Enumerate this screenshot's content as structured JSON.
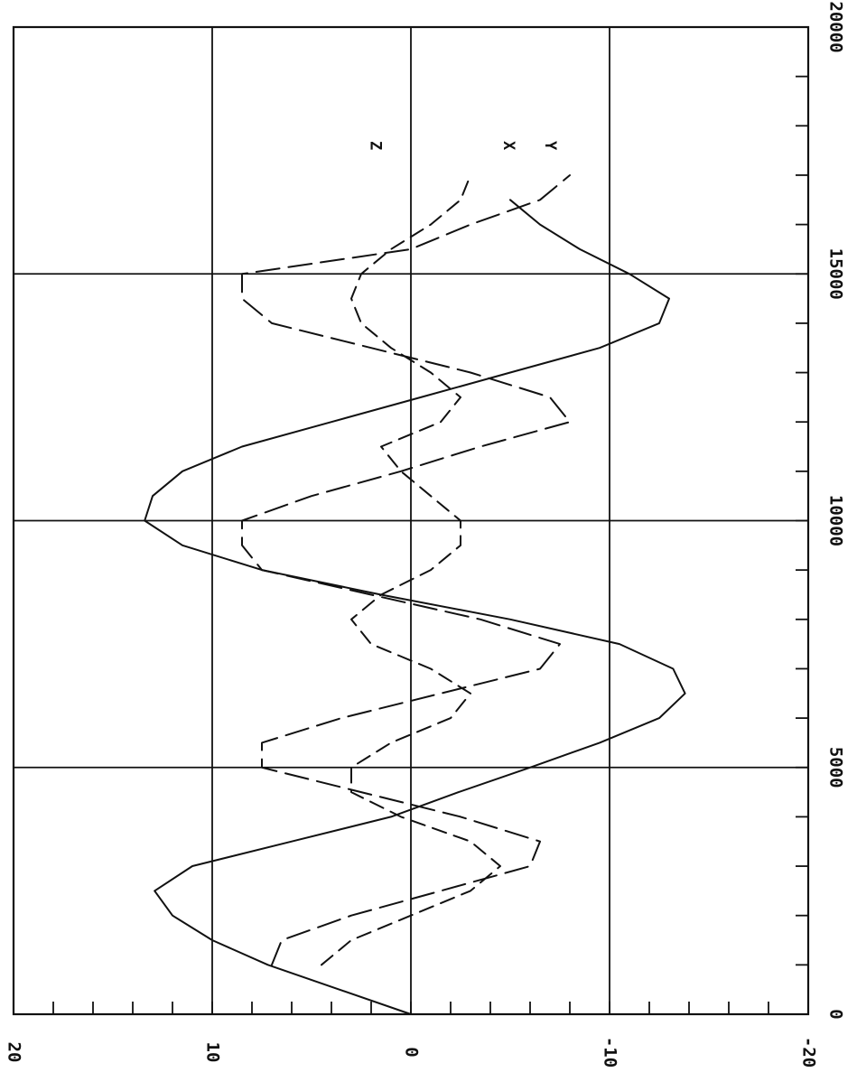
{
  "chart_data": {
    "type": "line",
    "title": "",
    "xlabel": "",
    "ylabel": "",
    "xlim": [
      0,
      20000
    ],
    "ylim": [
      -20,
      20
    ],
    "x_ticks": [
      0,
      5000,
      10000,
      15000,
      20000
    ],
    "x_tick_labels": [
      "0",
      "5000",
      "10000",
      "15000",
      "20000"
    ],
    "y_ticks": [
      20,
      10,
      0,
      -10,
      -20
    ],
    "y_tick_labels": [
      "20",
      "10",
      "0",
      "-10",
      "-20"
    ],
    "grid": true,
    "orientation": "rotated-90",
    "series": [
      {
        "name": "X",
        "style": "solid",
        "x": [
          0,
          500,
          1000,
          1500,
          2000,
          2500,
          3000,
          3500,
          4000,
          4500,
          5000,
          5500,
          6000,
          6500,
          7000,
          7500,
          8000,
          8500,
          9000,
          9500,
          10000,
          10500,
          11000,
          11500,
          12000,
          12500,
          13000,
          13500,
          14000,
          14500,
          15000,
          15500,
          16000,
          16500
        ],
        "y": [
          0,
          3.6,
          7.2,
          10.0,
          12.0,
          12.9,
          11.0,
          6.0,
          1.0,
          -2.4,
          -6.0,
          -9.5,
          -12.5,
          -13.8,
          -13.2,
          -10.5,
          -5.0,
          1.5,
          7.5,
          11.5,
          13.4,
          13.0,
          11.5,
          8.5,
          4.0,
          -0.5,
          -5.0,
          -9.5,
          -12.5,
          -13.0,
          -11.0,
          -8.5,
          -6.5,
          -5.0
        ]
      },
      {
        "name": "Y",
        "style": "long-dash",
        "x": [
          1000,
          1500,
          2000,
          2500,
          3000,
          3500,
          4000,
          4500,
          5000,
          5500,
          6000,
          6500,
          7000,
          7500,
          8000,
          8500,
          9000,
          9500,
          10000,
          10500,
          11000,
          11500,
          12000,
          12500,
          13000,
          13500,
          14000,
          14500,
          15000,
          15500,
          16000,
          16500,
          17000
        ],
        "y": [
          7.0,
          6.5,
          3.0,
          -1.5,
          -6.0,
          -6.5,
          -2.5,
          2.5,
          7.5,
          7.5,
          3.5,
          -1.5,
          -6.5,
          -7.5,
          -3.5,
          2.0,
          7.5,
          8.5,
          8.5,
          5.0,
          0.5,
          -3.5,
          -8.0,
          -7.0,
          -3.0,
          2.0,
          7.0,
          8.5,
          8.5,
          0,
          -3.0,
          -6.5,
          -8.0
        ]
      },
      {
        "name": "Z",
        "style": "dashed",
        "x": [
          1000,
          1500,
          2000,
          2500,
          3000,
          3500,
          4000,
          4500,
          5000,
          5500,
          6000,
          6500,
          7000,
          7500,
          8000,
          8500,
          9000,
          9500,
          10000,
          10500,
          11000,
          11500,
          12000,
          12500,
          13000,
          13500,
          14000,
          14500,
          15000,
          15500,
          16000,
          16500,
          17000
        ],
        "y": [
          4.5,
          3.0,
          0.0,
          -3.0,
          -4.5,
          -3.0,
          0.5,
          3.0,
          3.0,
          1.0,
          -2.0,
          -3.0,
          -1.0,
          2.0,
          3.0,
          1.5,
          -1.0,
          -2.5,
          -2.5,
          -1.0,
          0.5,
          1.5,
          -1.5,
          -2.5,
          -1.0,
          1.0,
          2.5,
          3.0,
          2.5,
          1.0,
          -1.0,
          -2.5,
          -3.0
        ]
      }
    ],
    "series_labels": [
      {
        "text": "Z",
        "series": "Z"
      },
      {
        "text": "X",
        "series": "X"
      },
      {
        "text": "Y",
        "series": "Y"
      }
    ]
  }
}
